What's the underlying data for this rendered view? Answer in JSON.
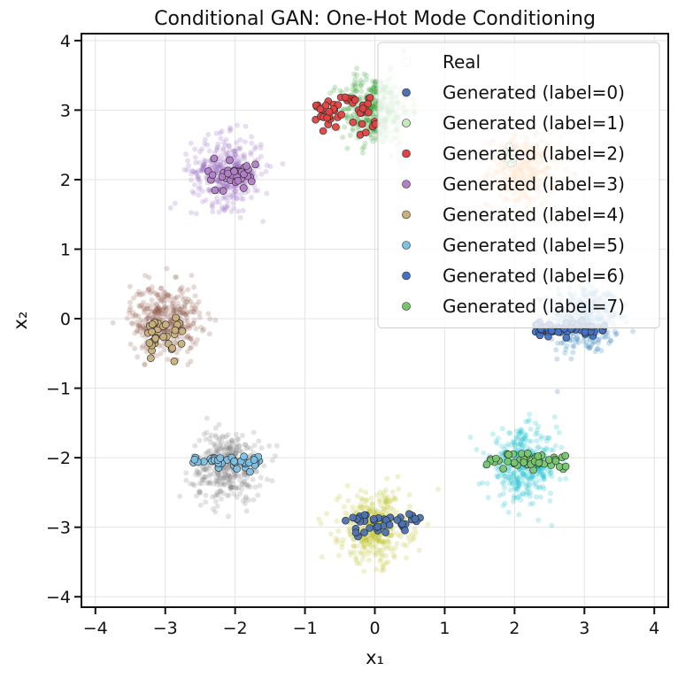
{
  "chart_data": {
    "type": "scatter",
    "title": "Conditional GAN: One-Hot Mode Conditioning",
    "xlabel": "x₁",
    "ylabel": "x₂",
    "xlim": [
      -4.2,
      4.2
    ],
    "ylim": [
      -4.15,
      4.1
    ],
    "xticks": [
      -4,
      -3,
      -2,
      -1,
      0,
      1,
      2,
      3,
      4
    ],
    "yticks": [
      -4,
      -3,
      -2,
      -1,
      0,
      1,
      2,
      3,
      4
    ],
    "xtick_labels": [
      "−4",
      "−3",
      "−2",
      "−1",
      "0",
      "1",
      "2",
      "3",
      "4"
    ],
    "ytick_labels": [
      "−4",
      "−3",
      "−2",
      "−1",
      "0",
      "1",
      "2",
      "3",
      "4"
    ],
    "grid": true,
    "legend_position": "top-right",
    "real_clusters": [
      {
        "center": [
          3.0,
          0.0
        ],
        "spread": 0.25,
        "count": 380,
        "color": "#1f77b4"
      },
      {
        "center": [
          2.12,
          2.12
        ],
        "spread": 0.25,
        "count": 380,
        "color": "#ff7f0e"
      },
      {
        "center": [
          0.0,
          3.0
        ],
        "spread": 0.25,
        "count": 380,
        "color": "#2ca02c"
      },
      {
        "center": [
          -2.12,
          2.12
        ],
        "spread": 0.25,
        "count": 380,
        "color": "#9467bd"
      },
      {
        "center": [
          -3.0,
          0.0
        ],
        "spread": 0.25,
        "count": 380,
        "color": "#8c564b"
      },
      {
        "center": [
          -2.12,
          -2.12
        ],
        "spread": 0.25,
        "count": 380,
        "color": "#7f7f7f"
      },
      {
        "center": [
          0.0,
          -3.0
        ],
        "spread": 0.25,
        "count": 380,
        "color": "#bcbd22"
      },
      {
        "center": [
          2.12,
          -2.12
        ],
        "spread": 0.25,
        "count": 380,
        "color": "#17becf"
      }
    ],
    "series": [
      {
        "name": "Real",
        "color": "#ffffff",
        "alpha": 0.25
      },
      {
        "name": "Generated (label=0)",
        "color": "#4c72b0",
        "center": [
          0.2,
          -2.95
        ],
        "x_range": [
          -0.5,
          0.65
        ],
        "y_jitter": 0.07,
        "count": 40
      },
      {
        "name": "Generated (label=1)",
        "color": "#c7e9c0",
        "center": [
          1.95,
          2.35
        ],
        "x_range": [
          1.75,
          2.1
        ],
        "y_jitter": 0.07,
        "count": 12
      },
      {
        "name": "Generated (label=2)",
        "color": "#dd4444",
        "center": [
          -0.1,
          3.0
        ],
        "x_range": [
          -0.85,
          0.05
        ],
        "y_jitter": 0.12,
        "count": 50
      },
      {
        "name": "Generated (label=3)",
        "color": "#b380c6",
        "center": [
          -2.1,
          2.05
        ],
        "x_range": [
          -2.4,
          -1.7
        ],
        "y_jitter": 0.1,
        "count": 35
      },
      {
        "name": "Generated (label=4)",
        "color": "#c9b07a",
        "center": [
          -3.0,
          -0.25
        ],
        "x_range": [
          -3.3,
          -2.75
        ],
        "y_jitter": 0.14,
        "count": 35
      },
      {
        "name": "Generated (label=5)",
        "color": "#7fbfe0",
        "center": [
          -2.1,
          -2.05
        ],
        "x_range": [
          -2.6,
          -1.6
        ],
        "y_jitter": 0.05,
        "count": 40
      },
      {
        "name": "Generated (label=6)",
        "color": "#4472c4",
        "center": [
          2.9,
          -0.15
        ],
        "x_range": [
          2.3,
          3.3
        ],
        "y_jitter": 0.04,
        "count": 60
      },
      {
        "name": "Generated (label=7)",
        "color": "#77c66e",
        "center": [
          2.15,
          -2.05
        ],
        "x_range": [
          1.6,
          2.75
        ],
        "y_jitter": 0.06,
        "count": 45
      }
    ]
  }
}
